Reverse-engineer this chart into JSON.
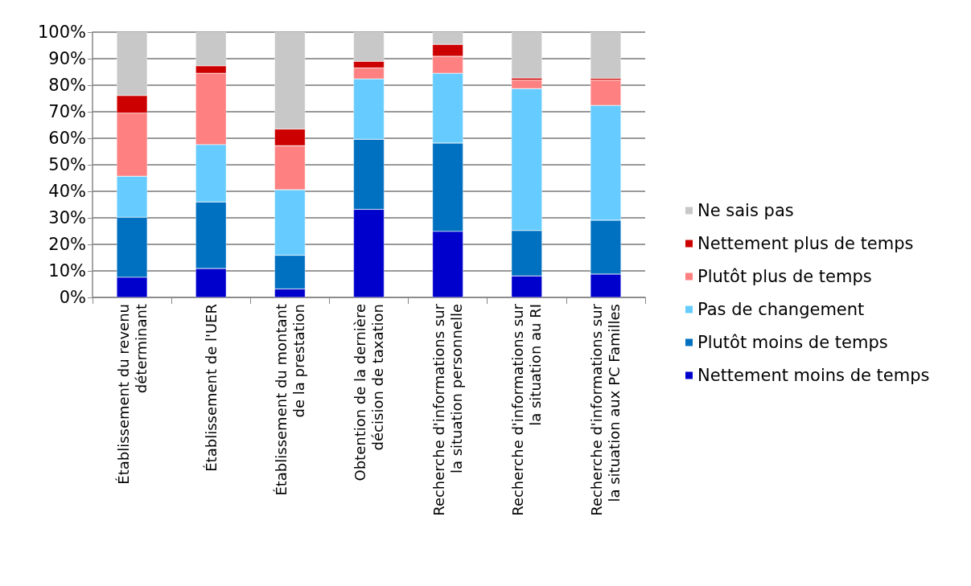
{
  "chart_data": {
    "type": "bar",
    "stacked": true,
    "categories": [
      "Établissement du revenu\ndéterminant",
      "Établissement de l'UER",
      "Établissement du montant\nde la prestation",
      "Obtention de la dernière\ndécision de taxation",
      "Recherche d'informations sur\nla situation personnelle",
      "Recherche d'informations sur\nla situation au RI",
      "Recherche d'informations sur\nla situation aux PC Familles"
    ],
    "series": [
      {
        "name": "Nettement moins de temps",
        "color": "#0000cc",
        "values": [
          7.6,
          10.9,
          3.2,
          33.2,
          24.9,
          8.1,
          8.8
        ]
      },
      {
        "name": "Plutôt moins de temps",
        "color": "#0070c0",
        "values": [
          22.6,
          25.1,
          12.7,
          26.4,
          33.3,
          17.1,
          20.3
        ]
      },
      {
        "name": "Pas de changement",
        "color": "#66ccff",
        "values": [
          15.5,
          21.6,
          24.7,
          22.8,
          26.3,
          53.5,
          43.3
        ]
      },
      {
        "name": "Plutôt plus de temps",
        "color": "#ff8080",
        "values": [
          23.8,
          26.9,
          16.6,
          4.1,
          6.4,
          3.2,
          9.5
        ]
      },
      {
        "name": "Nettement plus de temps",
        "color": "#cc0000",
        "values": [
          6.6,
          2.8,
          6.3,
          2.5,
          4.5,
          0.8,
          0.7
        ]
      },
      {
        "name": "Ne sais pas",
        "color": "#c8c8c8",
        "values": [
          23.9,
          12.7,
          36.5,
          11.0,
          4.6,
          17.3,
          17.4
        ]
      }
    ],
    "ylim": [
      0,
      100
    ],
    "yticks": [
      {
        "value": 0,
        "label": "0%"
      },
      {
        "value": 10,
        "label": "10%"
      },
      {
        "value": 20,
        "label": "20%"
      },
      {
        "value": 30,
        "label": "30%"
      },
      {
        "value": 40,
        "label": "40%"
      },
      {
        "value": 50,
        "label": "50%"
      },
      {
        "value": 60,
        "label": "60%"
      },
      {
        "value": 70,
        "label": "70%"
      },
      {
        "value": 80,
        "label": "80%"
      },
      {
        "value": 90,
        "label": "90%"
      },
      {
        "value": 100,
        "label": "100%"
      }
    ],
    "grid": "y",
    "legend": "right"
  }
}
